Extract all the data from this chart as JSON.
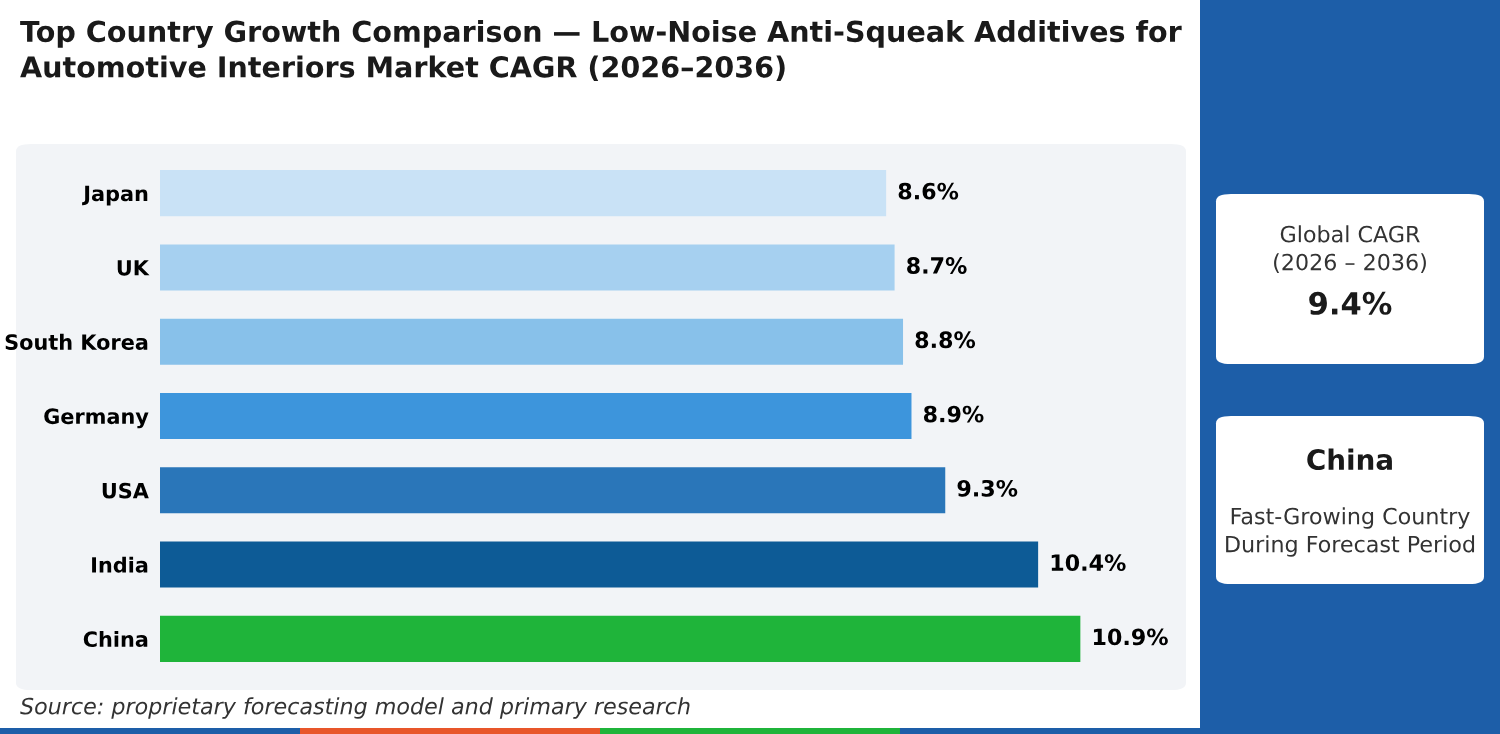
{
  "chart_data": {
    "type": "bar",
    "orientation": "horizontal",
    "title": "Top Country Growth Comparison — Low-Noise Anti-Squeak Additives for\nAutomotive Interiors Market CAGR (2026–2036)",
    "categories": [
      "Japan",
      "UK",
      "South Korea",
      "Germany",
      "USA",
      "India",
      "China"
    ],
    "values": [
      8.6,
      8.7,
      8.8,
      8.9,
      9.3,
      10.4,
      10.9
    ],
    "colors": [
      "#c9e2f6",
      "#a6d0f0",
      "#88c1ea",
      "#3d95dc",
      "#2a76b9",
      "#0d5b96",
      "#1fb43a"
    ],
    "value_labels": [
      "8.6%",
      "8.7%",
      "8.8%",
      "8.9%",
      "9.3%",
      "10.4%",
      "10.9%"
    ],
    "grid": false,
    "legend": false,
    "tick_labels": "y",
    "annotations": [
      "Source: proprietary forecasting model and primary research",
      "Global CAGR",
      "(2026 – 2036)",
      "9.4%",
      "China",
      "Fast-Growing Country",
      "During Forecast Period"
    ]
  }
}
